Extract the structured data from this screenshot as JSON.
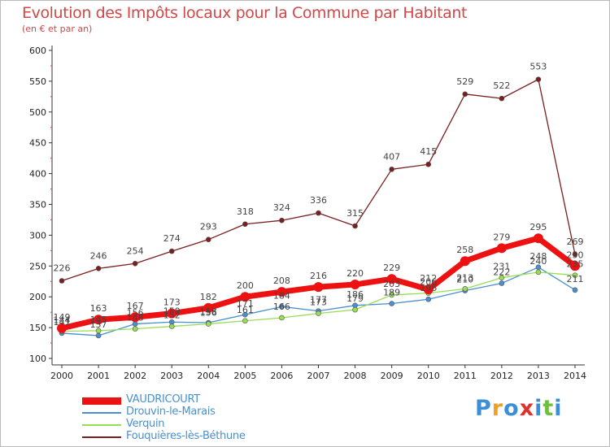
{
  "header": {
    "title": "Evolution des Impôts locaux pour la Commune par Habitant",
    "subtitle": "(en € et par an)"
  },
  "logo": {
    "text": "Proxiti"
  },
  "chart_data": {
    "type": "line",
    "x": [
      "2000",
      "2001",
      "2002",
      "2003",
      "2004",
      "2005",
      "2006",
      "2007",
      "2008",
      "2009",
      "2010",
      "2011",
      "2012",
      "2013",
      "2014"
    ],
    "ylim": [
      100,
      600
    ],
    "yticks": [
      "100",
      "150",
      "200",
      "250",
      "300",
      "350",
      "400",
      "450",
      "500",
      "550",
      "600"
    ],
    "grid": false,
    "legend_position": "bottom-left",
    "series": [
      {
        "name": "VAUDRICOURT",
        "color": "#ee1111",
        "values": [
          149,
          163,
          167,
          173,
          182,
          200,
          208,
          216,
          220,
          229,
          212,
          258,
          279,
          295,
          250
        ]
      },
      {
        "name": "Drouvin-le-Marais",
        "color": "#4a8fd0",
        "values": [
          141,
          137,
          156,
          159,
          158,
          171,
          184,
          177,
          186,
          189,
          196,
          210,
          222,
          248,
          211
        ]
      },
      {
        "name": "Verquin",
        "color": "#99dd55",
        "values": [
          144,
          145,
          148,
          152,
          156,
          161,
          166,
          173,
          179,
          203,
          206,
          213,
          231,
          240,
          235
        ]
      },
      {
        "name": "Fouquières-lès-Béthune",
        "color": "#7a1f1f",
        "values": [
          226,
          246,
          254,
          274,
          293,
          318,
          324,
          336,
          315,
          407,
          415,
          529,
          522,
          553,
          269
        ]
      }
    ]
  }
}
